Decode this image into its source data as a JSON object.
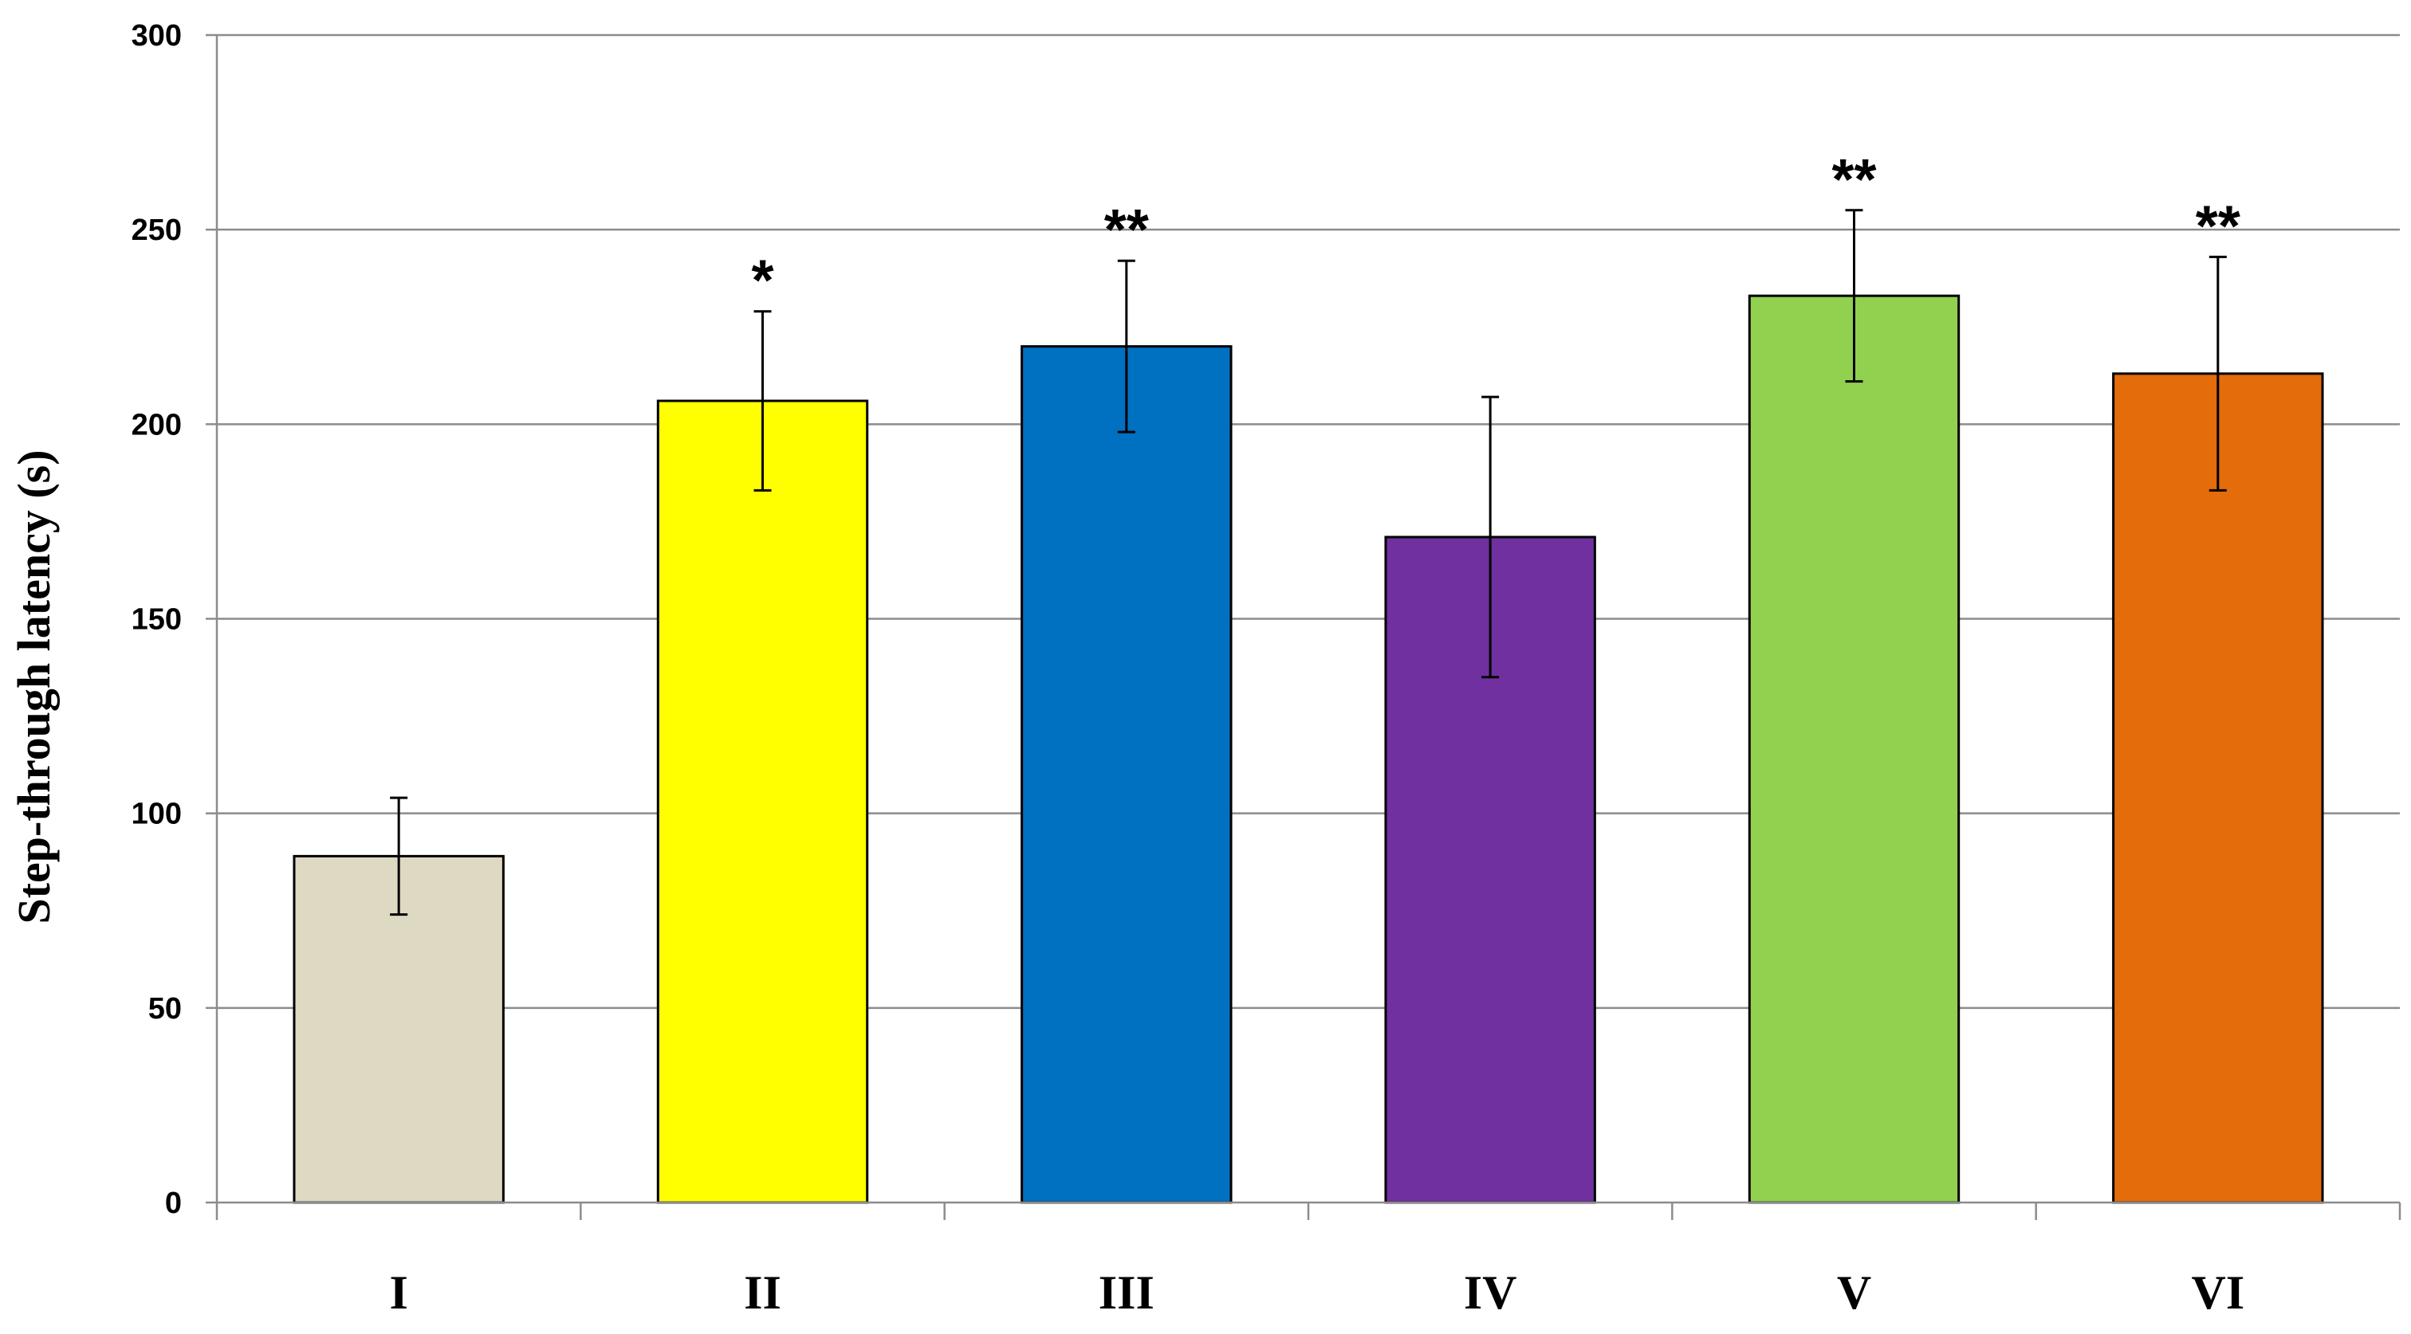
{
  "chart_data": {
    "type": "bar",
    "title": "",
    "xlabel": "",
    "ylabel": "Step-through  latency (s)",
    "ylim": [
      0,
      300
    ],
    "yticks": [
      0,
      50,
      100,
      150,
      200,
      250,
      300
    ],
    "grid": true,
    "categories": [
      "I",
      "II",
      "III",
      "IV",
      "V",
      "VI"
    ],
    "values": [
      89,
      206,
      220,
      171,
      233,
      213
    ],
    "errors": [
      15,
      23,
      22,
      36,
      22,
      30
    ],
    "colors": [
      "#DDD9C3",
      "#FFFF00",
      "#0070C0",
      "#7030A0",
      "#92D050",
      "#E46C0A"
    ],
    "significance": [
      "",
      "*",
      "**",
      "",
      "**",
      "**"
    ]
  }
}
